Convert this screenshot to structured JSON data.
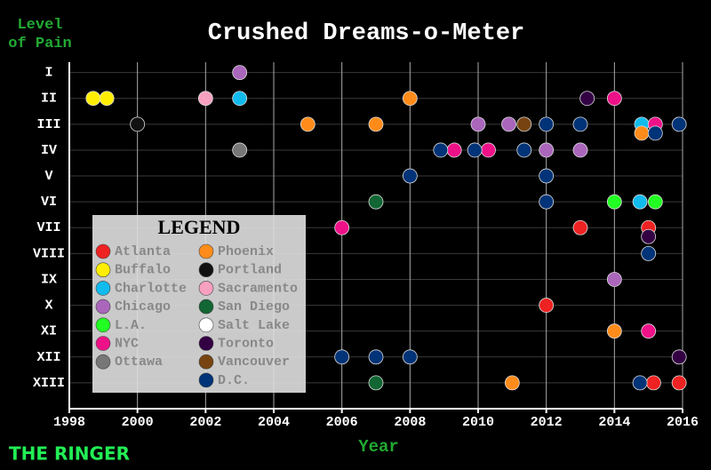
{
  "chart_data": {
    "type": "scatter",
    "title": "Crushed Dreams-o-Meter",
    "y_label": "Level of Pain",
    "x_label": "Year",
    "branding": "THE RINGER",
    "legend_title": "LEGEND",
    "xlim": [
      1998,
      2016
    ],
    "xticks": [
      1998,
      2000,
      2002,
      2004,
      2006,
      2008,
      2010,
      2012,
      2014,
      2016
    ],
    "ylim": [
      0.6,
      14
    ],
    "y_inverted": true,
    "yticks": [
      {
        "value": 1,
        "label": "I"
      },
      {
        "value": 2,
        "label": "II"
      },
      {
        "value": 3,
        "label": "III"
      },
      {
        "value": 4,
        "label": "IV"
      },
      {
        "value": 5,
        "label": "V"
      },
      {
        "value": 6,
        "label": "VI"
      },
      {
        "value": 7,
        "label": "VII"
      },
      {
        "value": 8,
        "label": "VIII"
      },
      {
        "value": 9,
        "label": "IX"
      },
      {
        "value": 10,
        "label": "X"
      },
      {
        "value": 11,
        "label": "XI"
      },
      {
        "value": 12,
        "label": "XII"
      },
      {
        "value": 13,
        "label": "XIII"
      }
    ],
    "grid": true,
    "legend_position": "lower-left",
    "series": [
      {
        "name": "Atlanta",
        "color": "#ee2222",
        "x": [
          2013,
          2015,
          2012,
          2015.15,
          2015.9
        ],
        "values": [
          7,
          7,
          10,
          13,
          13
        ]
      },
      {
        "name": "Buffalo",
        "color": "#ffee00",
        "x": [
          1998.7,
          1999.1
        ],
        "values": [
          2,
          2
        ]
      },
      {
        "name": "Charlotte",
        "color": "#11bbee",
        "x": [
          2003,
          2014.8,
          2014.75
        ],
        "values": [
          2,
          3,
          6
        ]
      },
      {
        "name": "Chicago",
        "color": "#aa66bb",
        "x": [
          2003,
          2010,
          2010.9,
          2012,
          2013,
          2014
        ],
        "values": [
          1,
          3,
          3,
          4,
          4,
          9
        ]
      },
      {
        "name": "L.A.",
        "color": "#22ff22",
        "x": [
          2014,
          2015.2
        ],
        "values": [
          6,
          6
        ]
      },
      {
        "name": "NYC",
        "color": "#ee1188",
        "x": [
          2014,
          2015.2,
          2009.3,
          2010.3,
          2006,
          2015
        ],
        "values": [
          2,
          3,
          4,
          4,
          7,
          11
        ]
      },
      {
        "name": "Ottawa",
        "color": "#777777",
        "x": [
          2003
        ],
        "values": [
          4
        ]
      },
      {
        "name": "Phoenix",
        "color": "#ff8c1a",
        "x": [
          2008,
          2005,
          2007,
          2014.8,
          2014,
          2011
        ],
        "values": [
          2,
          3,
          3,
          3,
          11,
          13
        ]
      },
      {
        "name": "Portland",
        "color": "#111111",
        "x": [
          2000
        ],
        "values": [
          3
        ]
      },
      {
        "name": "Sacramento",
        "color": "#f7a0c0",
        "x": [
          2002
        ],
        "values": [
          2
        ]
      },
      {
        "name": "San Diego",
        "color": "#116633",
        "x": [
          2007,
          2007
        ],
        "values": [
          6,
          13
        ]
      },
      {
        "name": "Salt Lake",
        "color": "#ffffff",
        "x": [],
        "values": []
      },
      {
        "name": "Toronto",
        "color": "#330044",
        "x": [
          2013.2,
          2015,
          2015.9
        ],
        "values": [
          2,
          7,
          12
        ]
      },
      {
        "name": "Vancouver",
        "color": "#774411",
        "x": [
          2011.35
        ],
        "values": [
          3
        ]
      },
      {
        "name": "D.C.",
        "color": "#003377",
        "x": [
          2012,
          2013,
          2015.2,
          2015.9,
          2008.9,
          2009.9,
          2011.35,
          2008,
          2012,
          2012,
          2015,
          2006,
          2007,
          2008,
          2014.75
        ],
        "values": [
          3,
          3,
          3,
          3,
          4,
          4,
          4,
          5,
          5,
          6,
          8,
          12,
          12,
          12,
          13
        ]
      }
    ]
  }
}
